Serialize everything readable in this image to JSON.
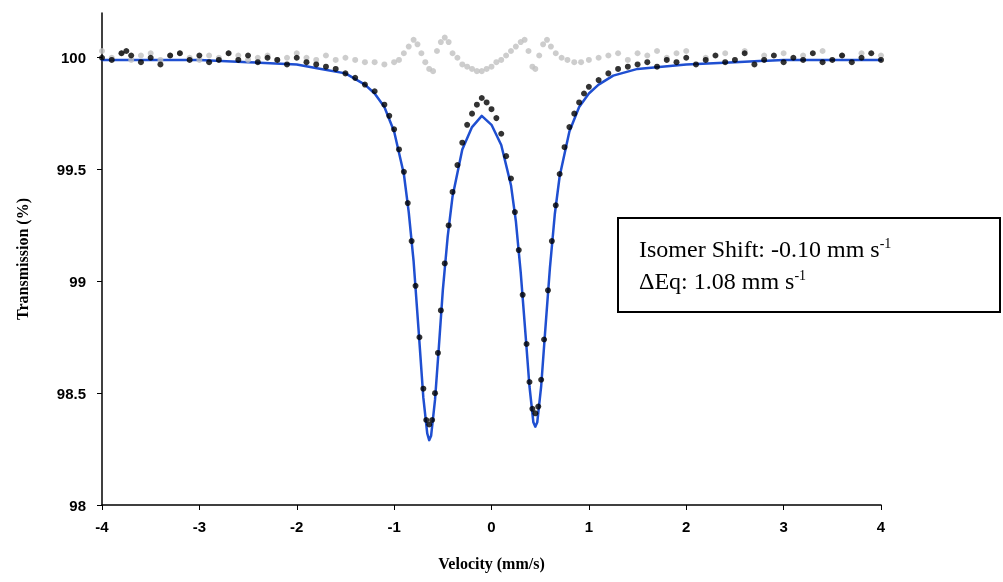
{
  "chart_data": {
    "type": "scatter",
    "xlabel": "Velocity (mm/s)",
    "ylabel": "Transmission (%)",
    "xlim": [
      -4,
      4
    ],
    "xticks": [
      -4,
      -3,
      -2,
      -1,
      0,
      1,
      2,
      3,
      4
    ],
    "ylim": [
      98,
      100.2
    ],
    "yticks": [
      98,
      98.5,
      99,
      99.5,
      100
    ],
    "grid": false,
    "marker": "circle",
    "line_style": "solid",
    "annotations": [
      "Isomer Shift: -0.10 mm s$^{-1}$",
      "ΔEq: 1.08 mm s$^{-1}$"
    ],
    "series": [
      {
        "color": "#c0c0c0",
        "x": [
          -4,
          -3.9,
          -3.8,
          -3.7,
          -3.6,
          -3.5,
          -3.4,
          -3.3,
          -3.2,
          -3.1,
          -3.0,
          -2.9,
          -2.8,
          -2.7,
          -2.6,
          -2.5,
          -2.4,
          -2.3,
          -2.2,
          -2.1,
          -2.0,
          -1.9,
          -1.8,
          -1.7,
          -1.6,
          -1.5,
          -1.4,
          -1.3,
          -1.2,
          -1.1,
          -1.0,
          -0.95,
          -0.9,
          -0.85,
          -0.8,
          -0.76,
          -0.72,
          -0.68,
          -0.64,
          -0.6,
          -0.56,
          -0.52,
          -0.48,
          -0.44,
          -0.4,
          -0.35,
          -0.3,
          -0.25,
          -0.2,
          -0.15,
          -0.1,
          -0.05,
          0,
          0.05,
          0.1,
          0.15,
          0.2,
          0.25,
          0.3,
          0.34,
          0.38,
          0.42,
          0.45,
          0.49,
          0.53,
          0.57,
          0.61,
          0.66,
          0.72,
          0.78,
          0.85,
          0.92,
          1.0,
          1.1,
          1.2,
          1.3,
          1.4,
          1.5,
          1.6,
          1.7,
          1.8,
          1.9,
          2.0,
          2.2,
          2.4,
          2.6,
          2.8,
          3.0,
          3.2,
          3.4,
          3.6,
          3.8,
          4.0
        ],
        "values": [
          100.03,
          100.0,
          100.02,
          99.99,
          100.01,
          100.02,
          99.99,
          100.01,
          100.02,
          100.0,
          99.99,
          100.01,
          100.0,
          100.02,
          100.01,
          99.99,
          100.0,
          100.01,
          99.99,
          100.0,
          100.02,
          100.0,
          99.99,
          100.01,
          99.99,
          100.0,
          99.99,
          99.98,
          99.98,
          99.97,
          99.98,
          99.99,
          100.02,
          100.05,
          100.08,
          100.06,
          100.02,
          99.98,
          99.95,
          99.94,
          100.03,
          100.07,
          100.09,
          100.07,
          100.02,
          100.0,
          99.97,
          99.96,
          99.95,
          99.94,
          99.94,
          99.95,
          99.96,
          99.98,
          99.99,
          100.01,
          100.03,
          100.05,
          100.07,
          100.08,
          100.03,
          99.96,
          99.95,
          100.01,
          100.06,
          100.08,
          100.05,
          100.02,
          100.0,
          99.99,
          99.98,
          99.98,
          99.99,
          100.0,
          100.01,
          100.02,
          99.99,
          100.02,
          100.01,
          100.03,
          100.0,
          100.02,
          100.03,
          100.0,
          100.02,
          100.03,
          100.01,
          100.02,
          100.01,
          100.03,
          100.01,
          100.02,
          100.01
        ]
      },
      {
        "type": "line",
        "marker": "none",
        "color": "#1f4fd1",
        "x": [
          -4,
          -3.5,
          -3,
          -2.5,
          -2,
          -1.75,
          -1.5,
          -1.3,
          -1.2,
          -1.1,
          -1.0,
          -0.9,
          -0.85,
          -0.8,
          -0.75,
          -0.7,
          -0.66,
          -0.64,
          -0.62,
          -0.58,
          -0.54,
          -0.5,
          -0.45,
          -0.4,
          -0.3,
          -0.2,
          -0.1,
          0,
          0.1,
          0.2,
          0.25,
          0.3,
          0.35,
          0.39,
          0.43,
          0.45,
          0.47,
          0.51,
          0.55,
          0.6,
          0.65,
          0.7,
          0.8,
          0.9,
          1.0,
          1.1,
          1.25,
          1.5,
          1.75,
          2,
          2.5,
          3,
          3.5,
          4
        ],
        "values": [
          99.99,
          99.99,
          99.99,
          99.98,
          99.97,
          99.95,
          99.93,
          99.88,
          99.84,
          99.78,
          99.67,
          99.48,
          99.31,
          99.09,
          98.79,
          98.48,
          98.32,
          98.29,
          98.31,
          98.47,
          98.71,
          98.96,
          99.2,
          99.38,
          99.59,
          99.69,
          99.74,
          99.7,
          99.61,
          99.43,
          99.27,
          99.04,
          98.76,
          98.53,
          98.37,
          98.35,
          98.37,
          98.53,
          98.77,
          99.06,
          99.3,
          99.47,
          99.67,
          99.78,
          99.84,
          99.88,
          99.92,
          99.95,
          99.96,
          99.97,
          99.98,
          99.99,
          99.99,
          99.99
        ]
      },
      {
        "color": "#000000",
        "x": [
          -4,
          -3.9,
          -3.8,
          -3.75,
          -3.7,
          -3.6,
          -3.5,
          -3.4,
          -3.3,
          -3.2,
          -3.1,
          -3.0,
          -2.9,
          -2.8,
          -2.7,
          -2.6,
          -2.5,
          -2.4,
          -2.3,
          -2.2,
          -2.1,
          -2.0,
          -1.9,
          -1.8,
          -1.7,
          -1.6,
          -1.5,
          -1.4,
          -1.3,
          -1.2,
          -1.1,
          -1.05,
          -1.0,
          -0.95,
          -0.9,
          -0.86,
          -0.82,
          -0.78,
          -0.74,
          -0.7,
          -0.67,
          -0.64,
          -0.61,
          -0.58,
          -0.55,
          -0.52,
          -0.48,
          -0.44,
          -0.4,
          -0.35,
          -0.3,
          -0.25,
          -0.2,
          -0.15,
          -0.1,
          -0.05,
          0,
          0.05,
          0.1,
          0.15,
          0.2,
          0.24,
          0.28,
          0.32,
          0.36,
          0.39,
          0.42,
          0.45,
          0.48,
          0.51,
          0.54,
          0.58,
          0.62,
          0.66,
          0.7,
          0.75,
          0.8,
          0.85,
          0.9,
          0.95,
          1.0,
          1.1,
          1.2,
          1.3,
          1.4,
          1.5,
          1.6,
          1.7,
          1.8,
          1.9,
          2.0,
          2.1,
          2.2,
          2.3,
          2.4,
          2.5,
          2.6,
          2.7,
          2.8,
          2.9,
          3.0,
          3.1,
          3.2,
          3.3,
          3.4,
          3.5,
          3.6,
          3.7,
          3.8,
          3.9,
          4.0
        ],
        "values": [
          100.0,
          99.99,
          100.02,
          100.03,
          100.01,
          99.98,
          100.0,
          99.97,
          100.01,
          100.02,
          99.99,
          100.01,
          99.98,
          99.99,
          100.02,
          99.99,
          100.01,
          99.98,
          100.0,
          99.99,
          99.97,
          100.0,
          99.98,
          99.97,
          99.96,
          99.95,
          99.93,
          99.91,
          99.88,
          99.85,
          99.79,
          99.74,
          99.68,
          99.59,
          99.49,
          99.35,
          99.18,
          98.98,
          98.75,
          98.52,
          98.38,
          98.36,
          98.38,
          98.5,
          98.68,
          98.87,
          99.08,
          99.25,
          99.4,
          99.52,
          99.62,
          99.7,
          99.75,
          99.79,
          99.82,
          99.8,
          99.77,
          99.73,
          99.66,
          99.56,
          99.46,
          99.31,
          99.14,
          98.94,
          98.72,
          98.55,
          98.43,
          98.41,
          98.44,
          98.56,
          98.74,
          98.96,
          99.18,
          99.34,
          99.48,
          99.6,
          99.69,
          99.75,
          99.8,
          99.84,
          99.87,
          99.9,
          99.93,
          99.95,
          99.96,
          99.97,
          99.98,
          99.96,
          99.99,
          99.98,
          100.0,
          99.97,
          99.99,
          100.01,
          99.98,
          99.99,
          100.02,
          99.97,
          99.99,
          100.01,
          99.98,
          100.0,
          99.99,
          100.02,
          99.98,
          99.99,
          100.01,
          99.98,
          100.0,
          100.02,
          99.99
        ]
      }
    ]
  }
}
